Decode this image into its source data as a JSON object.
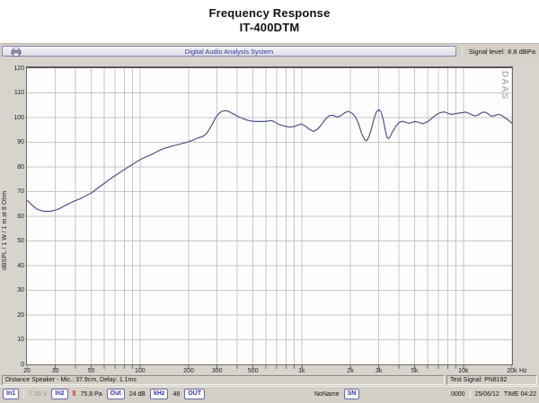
{
  "title": {
    "line1": "Frequency Response",
    "line2": "IT-400DTM"
  },
  "toolbar": {
    "app_name": "Digital Audio Analysis System",
    "signal_label": "Signal level:",
    "signal_value": "8.8 dBPa"
  },
  "chart_data": {
    "type": "line",
    "title": "Frequency Response IT-400DTM",
    "xlabel": "Hz",
    "ylabel": "dBSPL / 1 W / 1 m at 8 Ohm",
    "x_scale": "log",
    "xlim": [
      20,
      20000
    ],
    "ylim": [
      0,
      120
    ],
    "grid": true,
    "legend": "none",
    "watermark": "DAAS",
    "line_color": "#51518b",
    "grid_color": "#c7c7cb",
    "x_unit": "Hz",
    "y_ticks": [
      0,
      10,
      20,
      30,
      40,
      50,
      60,
      70,
      80,
      90,
      100,
      110,
      120
    ],
    "y_gridlines": [
      10,
      20,
      30,
      40,
      50,
      60,
      70,
      80,
      90,
      100,
      110
    ],
    "x_ticks": [
      {
        "f": 20,
        "label": "20"
      },
      {
        "f": 30,
        "label": "30"
      },
      {
        "f": 50,
        "label": "50"
      },
      {
        "f": 100,
        "label": "100"
      },
      {
        "f": 200,
        "label": "200"
      },
      {
        "f": 300,
        "label": "300"
      },
      {
        "f": 500,
        "label": "500"
      },
      {
        "f": 1000,
        "label": "1k"
      },
      {
        "f": 2000,
        "label": "2k"
      },
      {
        "f": 3000,
        "label": "3k"
      },
      {
        "f": 5000,
        "label": "5k"
      },
      {
        "f": 10000,
        "label": "10k"
      },
      {
        "f": 20000,
        "label": "20k"
      }
    ],
    "x_gridlines": [
      30,
      40,
      50,
      60,
      70,
      80,
      90,
      100,
      200,
      300,
      400,
      500,
      600,
      700,
      800,
      900,
      1000,
      2000,
      3000,
      4000,
      5000,
      6000,
      7000,
      8000,
      9000,
      10000,
      20000
    ],
    "x_tick_marks": [
      20,
      30,
      40,
      50,
      60,
      70,
      80,
      90,
      100,
      200,
      300,
      400,
      500,
      600,
      700,
      800,
      900,
      1000,
      2000,
      3000,
      4000,
      5000,
      6000,
      7000,
      8000,
      9000,
      10000,
      20000
    ],
    "points": [
      [
        20,
        66.5
      ],
      [
        21.5,
        64.5
      ],
      [
        23,
        63
      ],
      [
        24.5,
        62.3
      ],
      [
        26,
        62
      ],
      [
        28,
        62
      ],
      [
        30,
        62.5
      ],
      [
        32,
        63.2
      ],
      [
        34,
        64.2
      ],
      [
        36,
        65
      ],
      [
        38,
        65.8
      ],
      [
        40,
        66.4
      ],
      [
        43,
        67.2
      ],
      [
        46,
        68.2
      ],
      [
        50,
        69.4
      ],
      [
        55,
        71.5
      ],
      [
        60,
        73.3
      ],
      [
        65,
        75
      ],
      [
        70,
        76.4
      ],
      [
        75,
        77.7
      ],
      [
        80,
        78.9
      ],
      [
        85,
        80
      ],
      [
        90,
        81
      ],
      [
        95,
        82
      ],
      [
        100,
        82.9
      ],
      [
        110,
        84.2
      ],
      [
        120,
        85.3
      ],
      [
        130,
        86.5
      ],
      [
        140,
        87.4
      ],
      [
        150,
        88
      ],
      [
        160,
        88.6
      ],
      [
        170,
        89
      ],
      [
        180,
        89.4
      ],
      [
        190,
        89.8
      ],
      [
        200,
        90.2
      ],
      [
        215,
        91
      ],
      [
        230,
        91.8
      ],
      [
        245,
        92.4
      ],
      [
        258,
        93.5
      ],
      [
        270,
        95.5
      ],
      [
        282,
        97.8
      ],
      [
        294,
        100
      ],
      [
        306,
        101.5
      ],
      [
        318,
        102.4
      ],
      [
        332,
        102.8
      ],
      [
        348,
        102.7
      ],
      [
        365,
        102
      ],
      [
        385,
        101.2
      ],
      [
        400,
        100.6
      ],
      [
        420,
        100
      ],
      [
        445,
        99.3
      ],
      [
        470,
        98.8
      ],
      [
        500,
        98.5
      ],
      [
        540,
        98.4
      ],
      [
        580,
        98.4
      ],
      [
        620,
        98.6
      ],
      [
        650,
        98.8
      ],
      [
        680,
        98.2
      ],
      [
        720,
        97.3
      ],
      [
        760,
        96.8
      ],
      [
        800,
        96.4
      ],
      [
        850,
        96.1
      ],
      [
        900,
        96.4
      ],
      [
        950,
        97
      ],
      [
        1000,
        97.4
      ],
      [
        1060,
        96.4
      ],
      [
        1120,
        95.2
      ],
      [
        1180,
        94.4
      ],
      [
        1250,
        95.2
      ],
      [
        1320,
        97
      ],
      [
        1400,
        99.3
      ],
      [
        1480,
        100.8
      ],
      [
        1560,
        101
      ],
      [
        1650,
        100.2
      ],
      [
        1750,
        100.8
      ],
      [
        1850,
        102
      ],
      [
        1950,
        102.5
      ],
      [
        2050,
        101.8
      ],
      [
        2150,
        100.2
      ],
      [
        2250,
        97.5
      ],
      [
        2350,
        93.5
      ],
      [
        2450,
        91
      ],
      [
        2520,
        90.6
      ],
      [
        2600,
        92
      ],
      [
        2700,
        95.5
      ],
      [
        2800,
        99.5
      ],
      [
        2900,
        102.3
      ],
      [
        3000,
        103.2
      ],
      [
        3100,
        102.2
      ],
      [
        3200,
        99
      ],
      [
        3300,
        94.5
      ],
      [
        3380,
        91.8
      ],
      [
        3460,
        91.5
      ],
      [
        3550,
        92.8
      ],
      [
        3700,
        95
      ],
      [
        3850,
        96.8
      ],
      [
        4000,
        98
      ],
      [
        4200,
        98.5
      ],
      [
        4400,
        98.1
      ],
      [
        4600,
        97.7
      ],
      [
        4800,
        98
      ],
      [
        5000,
        98.4
      ],
      [
        5300,
        98.1
      ],
      [
        5600,
        97.5
      ],
      [
        6000,
        98.3
      ],
      [
        6400,
        99.8
      ],
      [
        6800,
        101.2
      ],
      [
        7200,
        102
      ],
      [
        7600,
        102.3
      ],
      [
        8000,
        101.8
      ],
      [
        8400,
        101.3
      ],
      [
        8800,
        101.5
      ],
      [
        9300,
        101.8
      ],
      [
        9800,
        102
      ],
      [
        10300,
        102.2
      ],
      [
        10800,
        101.8
      ],
      [
        11300,
        101.1
      ],
      [
        11800,
        100.7
      ],
      [
        12300,
        101
      ],
      [
        12800,
        101.7
      ],
      [
        13300,
        102.2
      ],
      [
        13800,
        102.1
      ],
      [
        14300,
        101.4
      ],
      [
        14800,
        100.6
      ],
      [
        15400,
        100.7
      ],
      [
        16000,
        101.1
      ],
      [
        16600,
        101.3
      ],
      [
        17200,
        100.9
      ],
      [
        17800,
        100.3
      ],
      [
        18400,
        99.6
      ],
      [
        19200,
        98.7
      ],
      [
        20000,
        97.7
      ]
    ]
  },
  "statusbar1": {
    "left": "Distance Speaker - Mic.: 37.9cm, Delay: 1.1ms",
    "right": "Test Signal: PN8192"
  },
  "statusbar2": {
    "in1_button": "In1",
    "input_voltage": "7.20 V",
    "in2_button": "In2",
    "clip_mark": "‖",
    "mic_pressure": "75.8 Pa",
    "out_button": "Out",
    "out_gain": "24 dB",
    "khz_button": "kHz",
    "sample_rate": "48",
    "out2_button": "OUT",
    "project_name": "NoName",
    "sn_button": "SN",
    "counter": "0000",
    "date": "25/06/12",
    "time": "TIME 04:22"
  }
}
